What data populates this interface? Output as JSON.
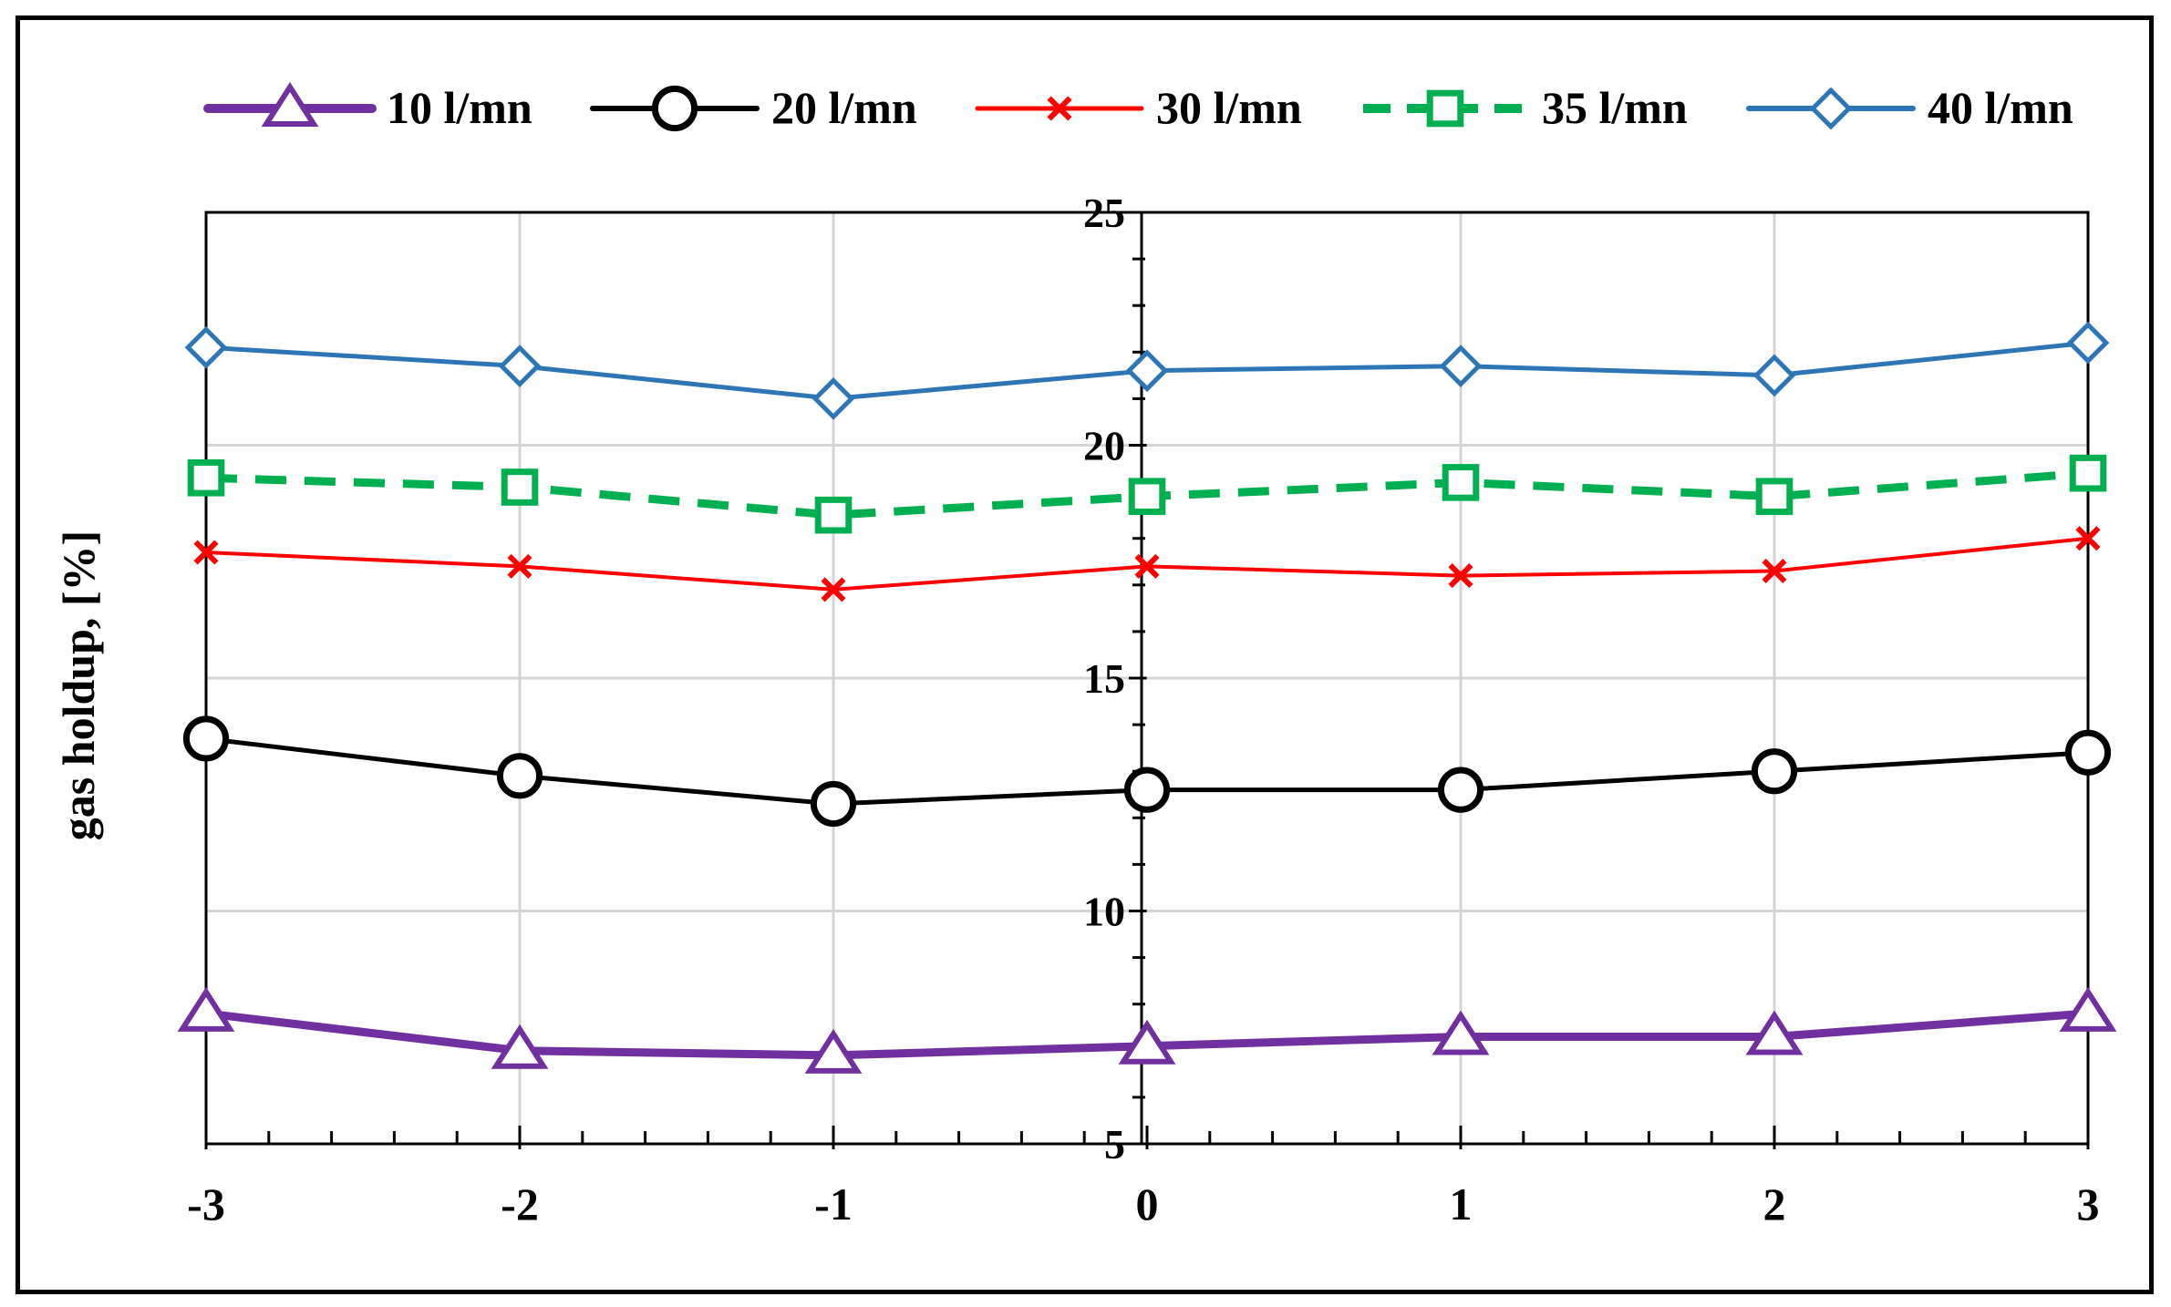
{
  "chart_data": {
    "type": "line",
    "title": "",
    "xlabel": "",
    "ylabel": "gas holdup, [%]",
    "x": [
      -3,
      -2,
      -1,
      0,
      1,
      2,
      3
    ],
    "x_tick_labels": [
      "-3",
      "-2",
      "-1",
      "0",
      "1",
      "2",
      "3"
    ],
    "xlim": [
      -3,
      3
    ],
    "ylim": [
      5,
      25
    ],
    "y_tick_labels": [
      "5",
      "10",
      "15",
      "20",
      "25"
    ],
    "grid": true,
    "legend_position": "top",
    "series": [
      {
        "name": "10 l/mn",
        "color": "#7030A0",
        "marker": "triangle",
        "dashed": false,
        "values": [
          7.8,
          7.0,
          6.9,
          7.1,
          7.3,
          7.3,
          7.8
        ]
      },
      {
        "name": "20 l/mn",
        "color": "#000000",
        "marker": "circle",
        "dashed": false,
        "values": [
          13.7,
          12.9,
          12.3,
          12.6,
          12.6,
          13.0,
          13.4
        ]
      },
      {
        "name": "30 l/mn",
        "color": "#FF0000",
        "marker": "x",
        "dashed": false,
        "values": [
          17.7,
          17.4,
          16.9,
          17.4,
          17.2,
          17.3,
          18.0
        ]
      },
      {
        "name": "35 l/mn",
        "color": "#00B050",
        "marker": "square",
        "dashed": true,
        "values": [
          19.3,
          19.1,
          18.5,
          18.9,
          19.2,
          18.9,
          19.4
        ]
      },
      {
        "name": "40 l/mn",
        "color": "#2E75B6",
        "marker": "diamond",
        "dashed": false,
        "values": [
          22.1,
          21.7,
          21.0,
          21.6,
          21.7,
          21.5,
          22.2
        ]
      }
    ]
  }
}
